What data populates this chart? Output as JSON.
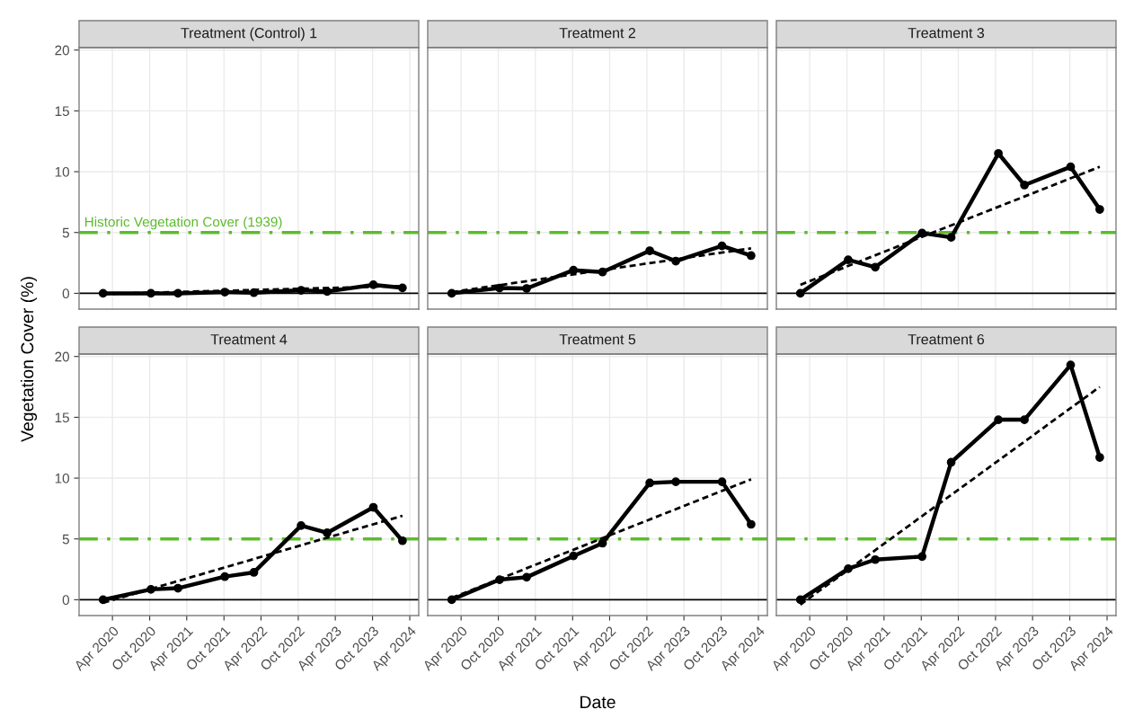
{
  "chart_data": [
    {
      "type": "line",
      "title": "Treatment (Control) 1",
      "ylabel": "Vegetation Cover (%)",
      "x": [
        "2020-02-15",
        "2020-10-07",
        "2021-02-17",
        "2021-10-05",
        "2022-02-25",
        "2022-10-15",
        "2023-02-20",
        "2023-10-05",
        "2024-02-25"
      ],
      "xlim": [
        "2019-10-20",
        "2024-05-15"
      ],
      "ylim": [
        -1.3,
        20.2
      ],
      "yticks": [
        0,
        5,
        10,
        15,
        20
      ],
      "xticks": [
        {
          "value": "2020-04-01",
          "label": null
        },
        {
          "value": "2020-10-01",
          "label": null
        },
        {
          "value": "2021-04-01",
          "label": null
        },
        {
          "value": "2021-10-01",
          "label": null
        },
        {
          "value": "2022-04-01",
          "label": null
        },
        {
          "value": "2022-10-01",
          "label": null
        },
        {
          "value": "2023-04-01",
          "label": null
        },
        {
          "value": "2023-10-01",
          "label": null
        },
        {
          "value": "2024-04-01",
          "label": null
        }
      ],
      "grid": true,
      "tick_labels": "y",
      "series": [
        {
          "color": "#000000",
          "marker": "circle",
          "line_style": "solid",
          "values": [
            0,
            0,
            0,
            0.1,
            0.05,
            0.25,
            0.15,
            0.7,
            0.45
          ]
        },
        {
          "color": "#000000",
          "marker": "none",
          "line_style": "dashed",
          "x": [
            "2020-02-15",
            "2024-02-25"
          ],
          "values": [
            -0.05,
            0.6
          ]
        }
      ],
      "ref_lines": [
        {
          "axis": "y",
          "value": 0,
          "color": "#000000",
          "line_style": "solid"
        },
        {
          "axis": "y",
          "value": 5,
          "label": "Historic Vegetation Cover (1939)",
          "color": "#5dbb2e",
          "line_style": "dashdot"
        }
      ]
    },
    {
      "type": "line",
      "title": "Treatment 2",
      "x": [
        "2020-02-15",
        "2020-10-07",
        "2021-02-17",
        "2021-10-05",
        "2022-02-25",
        "2022-10-15",
        "2023-02-20",
        "2023-10-05",
        "2024-02-25"
      ],
      "xlim": [
        "2019-10-20",
        "2024-05-15"
      ],
      "ylim": [
        -1.3,
        20.2
      ],
      "yticks": [
        0,
        5,
        10,
        15,
        20
      ],
      "xticks": [
        {
          "value": "2020-04-01",
          "label": null
        },
        {
          "value": "2020-10-01",
          "label": null
        },
        {
          "value": "2021-04-01",
          "label": null
        },
        {
          "value": "2021-10-01",
          "label": null
        },
        {
          "value": "2022-04-01",
          "label": null
        },
        {
          "value": "2022-10-01",
          "label": null
        },
        {
          "value": "2023-04-01",
          "label": null
        },
        {
          "value": "2023-10-01",
          "label": null
        },
        {
          "value": "2024-04-01",
          "label": null
        }
      ],
      "grid": true,
      "tick_labels": false,
      "series": [
        {
          "color": "#000000",
          "marker": "circle",
          "line_style": "solid",
          "values": [
            0,
            0.43,
            0.4,
            1.9,
            1.75,
            3.5,
            2.65,
            3.9,
            3.1
          ]
        },
        {
          "color": "#000000",
          "marker": "none",
          "line_style": "dashed",
          "x": [
            "2020-02-15",
            "2024-02-25"
          ],
          "values": [
            0.1,
            3.7
          ]
        }
      ],
      "ref_lines": [
        {
          "axis": "y",
          "value": 0,
          "color": "#000000",
          "line_style": "solid"
        },
        {
          "axis": "y",
          "value": 5,
          "color": "#5dbb2e",
          "line_style": "dashdot"
        }
      ]
    },
    {
      "type": "line",
      "title": "Treatment 3",
      "x": [
        "2020-02-15",
        "2020-10-07",
        "2021-02-17",
        "2021-10-05",
        "2022-02-25",
        "2022-10-15",
        "2023-02-20",
        "2023-10-05",
        "2024-02-25"
      ],
      "xlim": [
        "2019-10-20",
        "2024-05-15"
      ],
      "ylim": [
        -1.3,
        20.2
      ],
      "yticks": [
        0,
        5,
        10,
        15,
        20
      ],
      "xticks": [
        {
          "value": "2020-04-01",
          "label": null
        },
        {
          "value": "2020-10-01",
          "label": null
        },
        {
          "value": "2021-04-01",
          "label": null
        },
        {
          "value": "2021-10-01",
          "label": null
        },
        {
          "value": "2022-04-01",
          "label": null
        },
        {
          "value": "2022-10-01",
          "label": null
        },
        {
          "value": "2023-04-01",
          "label": null
        },
        {
          "value": "2023-10-01",
          "label": null
        },
        {
          "value": "2024-04-01",
          "label": null
        }
      ],
      "grid": true,
      "tick_labels": false,
      "series": [
        {
          "color": "#000000",
          "marker": "circle",
          "line_style": "solid",
          "values": [
            0,
            2.75,
            2.15,
            4.95,
            4.6,
            11.5,
            8.9,
            10.4,
            6.9
          ]
        },
        {
          "color": "#000000",
          "marker": "none",
          "line_style": "dashed",
          "x": [
            "2020-02-15",
            "2024-02-25"
          ],
          "values": [
            0.7,
            10.4
          ]
        }
      ],
      "ref_lines": [
        {
          "axis": "y",
          "value": 0,
          "color": "#000000",
          "line_style": "solid"
        },
        {
          "axis": "y",
          "value": 5,
          "color": "#5dbb2e",
          "line_style": "dashdot"
        }
      ]
    },
    {
      "type": "line",
      "title": "Treatment 4",
      "x": [
        "2020-02-15",
        "2020-10-07",
        "2021-02-17",
        "2021-10-05",
        "2022-02-25",
        "2022-10-15",
        "2023-02-20",
        "2023-10-05",
        "2024-02-25"
      ],
      "xlim": [
        "2019-10-20",
        "2024-05-15"
      ],
      "ylim": [
        -1.3,
        20.2
      ],
      "yticks": [
        0,
        5,
        10,
        15,
        20
      ],
      "xticks": [
        {
          "value": "2020-04-01",
          "label": "Apr 2020"
        },
        {
          "value": "2020-10-01",
          "label": "Oct 2020"
        },
        {
          "value": "2021-04-01",
          "label": "Apr 2021"
        },
        {
          "value": "2021-10-01",
          "label": "Oct 2021"
        },
        {
          "value": "2022-04-01",
          "label": "Apr 2022"
        },
        {
          "value": "2022-10-01",
          "label": "Oct 2022"
        },
        {
          "value": "2023-04-01",
          "label": "Apr 2023"
        },
        {
          "value": "2023-10-01",
          "label": "Oct 2023"
        },
        {
          "value": "2024-04-01",
          "label": "Apr 2024"
        }
      ],
      "grid": true,
      "series": [
        {
          "color": "#000000",
          "marker": "circle",
          "line_style": "solid",
          "values": [
            0,
            0.85,
            0.95,
            1.9,
            2.25,
            6.1,
            5.5,
            7.6,
            4.85
          ]
        },
        {
          "color": "#000000",
          "marker": "none",
          "line_style": "dashed",
          "x": [
            "2020-02-15",
            "2024-02-25"
          ],
          "values": [
            -0.25,
            6.9
          ]
        }
      ],
      "ref_lines": [
        {
          "axis": "y",
          "value": 0,
          "color": "#000000",
          "line_style": "solid"
        },
        {
          "axis": "y",
          "value": 5,
          "color": "#5dbb2e",
          "line_style": "dashdot"
        }
      ]
    },
    {
      "type": "line",
      "title": "Treatment 5",
      "xlabel": "Date",
      "x": [
        "2020-02-15",
        "2020-10-07",
        "2021-02-17",
        "2021-10-05",
        "2022-02-25",
        "2022-10-15",
        "2023-02-20",
        "2023-10-05",
        "2024-02-25"
      ],
      "xlim": [
        "2019-10-20",
        "2024-05-15"
      ],
      "ylim": [
        -1.3,
        20.2
      ],
      "yticks": [
        0,
        5,
        10,
        15,
        20
      ],
      "xticks": [
        {
          "value": "2020-04-01",
          "label": "Apr 2020"
        },
        {
          "value": "2020-10-01",
          "label": "Oct 2020"
        },
        {
          "value": "2021-04-01",
          "label": "Apr 2021"
        },
        {
          "value": "2021-10-01",
          "label": "Oct 2021"
        },
        {
          "value": "2022-04-01",
          "label": "Apr 2022"
        },
        {
          "value": "2022-10-01",
          "label": "Oct 2022"
        },
        {
          "value": "2023-04-01",
          "label": "Apr 2023"
        },
        {
          "value": "2023-10-01",
          "label": "Oct 2023"
        },
        {
          "value": "2024-04-01",
          "label": "Apr 2024"
        }
      ],
      "grid": true,
      "tick_labels": "x",
      "series": [
        {
          "color": "#000000",
          "marker": "circle",
          "line_style": "solid",
          "values": [
            0,
            1.65,
            1.85,
            3.6,
            4.65,
            9.6,
            9.7,
            9.7,
            6.2
          ]
        },
        {
          "color": "#000000",
          "marker": "none",
          "line_style": "dashed",
          "x": [
            "2020-02-15",
            "2024-02-25"
          ],
          "values": [
            0.15,
            9.9
          ]
        }
      ],
      "ref_lines": [
        {
          "axis": "y",
          "value": 0,
          "color": "#000000",
          "line_style": "solid"
        },
        {
          "axis": "y",
          "value": 5,
          "color": "#5dbb2e",
          "line_style": "dashdot"
        }
      ]
    },
    {
      "type": "line",
      "title": "Treatment 6",
      "x": [
        "2020-02-15",
        "2020-10-07",
        "2021-02-17",
        "2021-10-05",
        "2022-02-25",
        "2022-10-15",
        "2023-02-20",
        "2023-10-05",
        "2024-02-25"
      ],
      "xlim": [
        "2019-10-20",
        "2024-05-15"
      ],
      "ylim": [
        -1.3,
        20.2
      ],
      "yticks": [
        0,
        5,
        10,
        15,
        20
      ],
      "xticks": [
        {
          "value": "2020-04-01",
          "label": "Apr 2020"
        },
        {
          "value": "2020-10-01",
          "label": "Oct 2020"
        },
        {
          "value": "2021-04-01",
          "label": "Apr 2021"
        },
        {
          "value": "2021-10-01",
          "label": "Oct 2021"
        },
        {
          "value": "2022-04-01",
          "label": "Apr 2022"
        },
        {
          "value": "2022-10-01",
          "label": "Oct 2022"
        },
        {
          "value": "2023-04-01",
          "label": "Apr 2023"
        },
        {
          "value": "2023-10-01",
          "label": "Oct 2023"
        },
        {
          "value": "2024-04-01",
          "label": "Apr 2024"
        }
      ],
      "grid": true,
      "tick_labels": "x",
      "series": [
        {
          "color": "#000000",
          "marker": "circle",
          "line_style": "solid",
          "values": [
            0,
            2.55,
            3.3,
            3.55,
            11.3,
            14.8,
            14.8,
            19.3,
            11.7
          ]
        },
        {
          "color": "#000000",
          "marker": "none",
          "line_style": "dashed",
          "x": [
            "2020-02-15",
            "2024-02-25"
          ],
          "values": [
            -0.4,
            17.5
          ]
        }
      ],
      "ref_lines": [
        {
          "axis": "y",
          "value": 0,
          "color": "#000000",
          "line_style": "solid"
        },
        {
          "axis": "y",
          "value": 5,
          "color": "#5dbb2e",
          "line_style": "dashdot"
        }
      ]
    }
  ]
}
